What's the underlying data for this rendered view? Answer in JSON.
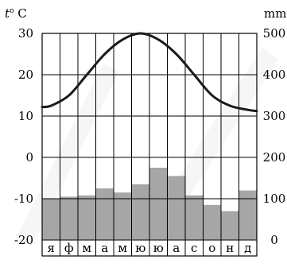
{
  "chart_data": {
    "type": "climatogram",
    "left_axis": {
      "label_main": "t",
      "label_sup": "o",
      "label_unit": " C",
      "ticks": [
        -20,
        -10,
        0,
        10,
        20,
        30
      ],
      "tick_labels": [
        "-20",
        "-10",
        "0",
        "10",
        "20",
        "30"
      ],
      "range": [
        -20,
        30
      ]
    },
    "right_axis": {
      "label": "mm",
      "ticks": [
        0,
        100,
        200,
        300,
        400,
        500
      ],
      "tick_labels": [
        "0",
        "100",
        "200",
        "300",
        "400",
        "500"
      ],
      "range": [
        0,
        500
      ]
    },
    "categories": [
      "я",
      "ф",
      "м",
      "а",
      "м",
      "ю",
      "ю",
      "а",
      "с",
      "о",
      "н",
      "д"
    ],
    "precipitation_mm": [
      100,
      105,
      108,
      125,
      115,
      135,
      175,
      155,
      108,
      85,
      70,
      120
    ],
    "temperature_c": [
      12.5,
      15,
      20,
      25,
      28.5,
      30,
      28.5,
      25,
      20,
      15,
      12.5,
      11.5
    ],
    "grid": true,
    "colors": {
      "bars": "#a6a6a6",
      "grid": "#000000",
      "line": "#1a1a1a",
      "panel": "#ffffff",
      "watermark": "#eeeeee"
    }
  }
}
